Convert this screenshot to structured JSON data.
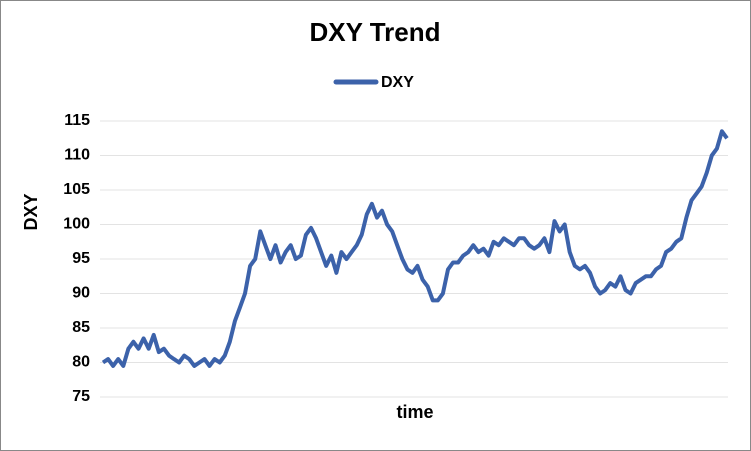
{
  "chart_data": {
    "type": "line",
    "title": "DXY Trend",
    "x_label": "time",
    "y_label": "DXY",
    "series": [
      {
        "name": "DXY",
        "color": "#3c62aa",
        "values": [
          80,
          80.5,
          79.5,
          80.5,
          79.5,
          82,
          83,
          82,
          83.5,
          82,
          84,
          81.5,
          82,
          81,
          80.5,
          80,
          81,
          80.5,
          79.5,
          80,
          80.5,
          79.5,
          80.5,
          80,
          81,
          83,
          86,
          88,
          90,
          94,
          95,
          99,
          97,
          95,
          97,
          94.5,
          96,
          97,
          95,
          95.5,
          98.5,
          99.5,
          98,
          96,
          94,
          95.5,
          93,
          96,
          95,
          96,
          97,
          98.5,
          101.5,
          103,
          101,
          102,
          100,
          99,
          97,
          95,
          93.5,
          93,
          94,
          92,
          91,
          89,
          89,
          90,
          93.5,
          94.5,
          94.5,
          95.5,
          96,
          97,
          96,
          96.5,
          95.5,
          97.5,
          97,
          98,
          97.5,
          97,
          98,
          98,
          97,
          96.5,
          97,
          98,
          96,
          100.5,
          99,
          100,
          96,
          94,
          93.5,
          94,
          93,
          91,
          90,
          90.5,
          91.5,
          91,
          92.5,
          90.5,
          90,
          91.5,
          92,
          92.5,
          92.5,
          93.5,
          94,
          96,
          96.5,
          97.5,
          98,
          101,
          103.5,
          104.5,
          105.5,
          107.5,
          110,
          111,
          113.5,
          112.5
        ]
      }
    ],
    "ylim": [
      75,
      115
    ],
    "yticks": [
      75,
      80,
      85,
      90,
      95,
      100,
      105,
      110,
      115
    ],
    "grid": true
  }
}
